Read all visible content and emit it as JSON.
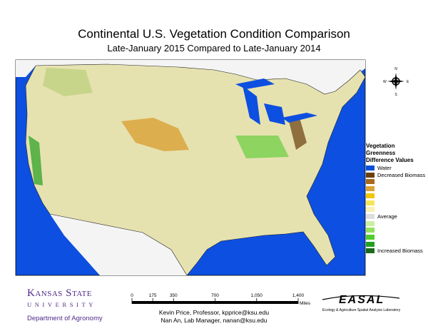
{
  "header": {
    "title": "Continental U.S. Vegetation Condition Comparison",
    "subtitle": "Late-January 2015 Compared to Late-January 2014"
  },
  "compass": {
    "n": "N",
    "e": "E",
    "s": "S",
    "w": "W"
  },
  "legend": {
    "title": "Vegetation Greenness Difference Values",
    "items": [
      {
        "color": "#0b4fd8",
        "label": "Water"
      },
      {
        "color": "#6b3e10",
        "label": "Decreased Biomass"
      },
      {
        "color": "#a8691c"
      },
      {
        "color": "#d9a136"
      },
      {
        "color": "#f2c600"
      },
      {
        "color": "#f6e55a"
      },
      {
        "color": "#f8f1b4"
      },
      {
        "color": "#dedede",
        "label": "Average"
      },
      {
        "color": "#c9f0a2"
      },
      {
        "color": "#92e05e"
      },
      {
        "color": "#52cc2c"
      },
      {
        "color": "#24a020"
      },
      {
        "color": "#1a6a1a",
        "label": "Increased Biomass"
      }
    ]
  },
  "scale": {
    "ticks": [
      0,
      175,
      350,
      700,
      {
        "value": 1050,
        "label": "1,050"
      },
      {
        "value": 1400,
        "label": "1,400"
      }
    ],
    "unit": "Miles"
  },
  "credits": [
    "Kevin Price, Professor, kpprice@ksu.edu",
    "Nan An, Lab Manager, nanan@ksu.edu"
  ],
  "logo_left": {
    "name": "Kansas State",
    "university": "UNIVERSITY",
    "department": "Department of Agronomy"
  },
  "logo_right": {
    "name": "EASAL",
    "full": "Ecology & Agriculture Spatial Analysis Laboratory"
  }
}
